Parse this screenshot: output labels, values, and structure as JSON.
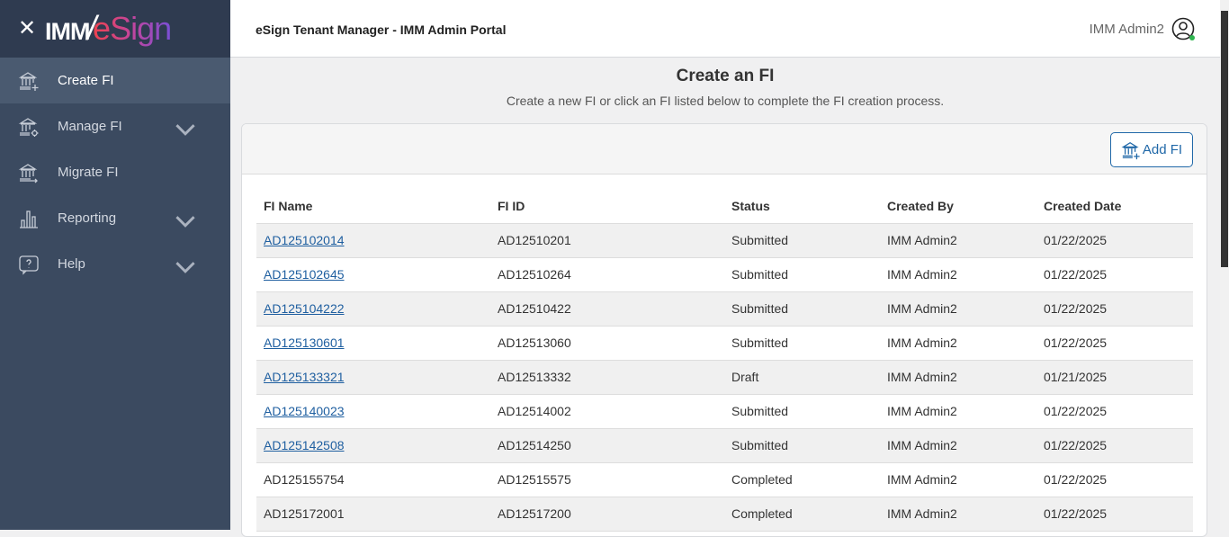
{
  "sidebar": {
    "logo_left": "IMM",
    "logo_right": "eSign",
    "items": [
      {
        "label": "Create FI",
        "icon": "bank-plus-icon",
        "active": true,
        "expandable": false
      },
      {
        "label": "Manage FI",
        "icon": "bank-gear-icon",
        "expandable": true
      },
      {
        "label": "Migrate FI",
        "icon": "bank-arrow-icon",
        "expandable": false
      },
      {
        "label": "Reporting",
        "icon": "bar-chart-icon",
        "expandable": true
      },
      {
        "label": "Help",
        "icon": "help-bubble-icon",
        "expandable": true
      }
    ]
  },
  "header": {
    "title": "eSign Tenant Manager - IMM Admin Portal",
    "user": "IMM Admin2"
  },
  "page": {
    "title": "Create an FI",
    "subtitle": "Create a new FI or click an FI listed below to complete the FI creation process.",
    "add_label": "Add FI"
  },
  "table": {
    "columns": [
      "FI Name",
      "FI ID",
      "Status",
      "Created By",
      "Created Date"
    ],
    "rows": [
      {
        "name": "AD125102014",
        "id": "AD12510201",
        "status": "Submitted",
        "by": "IMM Admin2",
        "date": "01/22/2025",
        "link": true
      },
      {
        "name": "AD125102645",
        "id": "AD12510264",
        "status": "Submitted",
        "by": "IMM Admin2",
        "date": "01/22/2025",
        "link": true
      },
      {
        "name": "AD125104222",
        "id": "AD12510422",
        "status": "Submitted",
        "by": "IMM Admin2",
        "date": "01/22/2025",
        "link": true
      },
      {
        "name": "AD125130601",
        "id": "AD12513060",
        "status": "Submitted",
        "by": "IMM Admin2",
        "date": "01/22/2025",
        "link": true
      },
      {
        "name": "AD125133321",
        "id": "AD12513332",
        "status": "Draft",
        "by": "IMM Admin2",
        "date": "01/21/2025",
        "link": true
      },
      {
        "name": "AD125140023",
        "id": "AD12514002",
        "status": "Submitted",
        "by": "IMM Admin2",
        "date": "01/22/2025",
        "link": true
      },
      {
        "name": "AD125142508",
        "id": "AD12514250",
        "status": "Submitted",
        "by": "IMM Admin2",
        "date": "01/22/2025",
        "link": true
      },
      {
        "name": "AD125155754",
        "id": "AD12515575",
        "status": "Completed",
        "by": "IMM Admin2",
        "date": "01/22/2025",
        "link": false
      },
      {
        "name": "AD125172001",
        "id": "AD12517200",
        "status": "Completed",
        "by": "IMM Admin2",
        "date": "01/22/2025",
        "link": false
      }
    ]
  }
}
